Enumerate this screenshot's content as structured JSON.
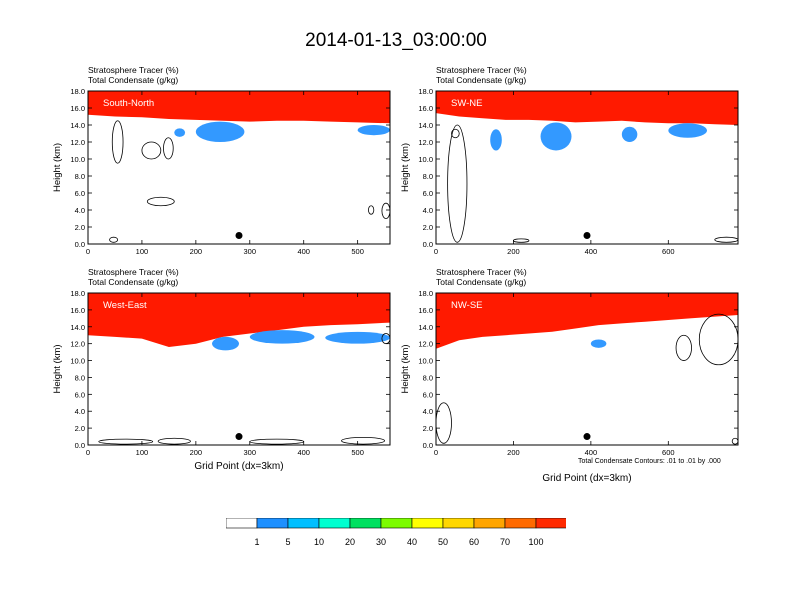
{
  "figure": {
    "title": "2014-01-13_03:00:00",
    "x_axis_title": "Grid Point (dx=3km)",
    "y_axis_title": "Height (km)",
    "contour_note": "Total Condensate Contours: .01 to .01 by .000",
    "labels": {
      "tracer": "Stratosphere Tracer",
      "tracer_unit": "(%)",
      "condensate": "Total Condensate",
      "condensate_unit": "(g/kg)"
    }
  },
  "chart_data": [
    {
      "type": "heatmap",
      "name": "South-North",
      "xlim": [
        0,
        560
      ],
      "ylim": [
        0,
        18
      ],
      "xticks": [
        0,
        100,
        200,
        300,
        400,
        500
      ],
      "yticks": [
        "0.0",
        "2.0",
        "4.0",
        "6.0",
        "8.0",
        "10.0",
        "12.0",
        "14.0",
        "16.0",
        "18.0"
      ],
      "show_xaxis_title": false,
      "marker": {
        "x": 280,
        "y": 1.0
      },
      "profile_x": [
        0,
        50,
        100,
        150,
        200,
        250,
        300,
        350,
        400,
        450,
        500,
        560
      ],
      "tracer_base_km": [
        15.2,
        15.0,
        14.9,
        14.7,
        14.6,
        14.5,
        14.4,
        14.5,
        14.5,
        14.4,
        14.3,
        14.2
      ],
      "cloud_patches": [
        {
          "x_start": 200,
          "x_end": 290,
          "y_bottom": 12.0,
          "y_top": 14.4
        },
        {
          "x_start": 160,
          "x_end": 180,
          "y_bottom": 12.6,
          "y_top": 13.6
        },
        {
          "x_start": 500,
          "x_end": 560,
          "y_bottom": 12.8,
          "y_top": 14.0
        }
      ],
      "condensate_contours": [
        {
          "x_start": 45,
          "x_end": 65,
          "y_bottom": 9.5,
          "y_top": 14.5
        },
        {
          "x_start": 100,
          "x_end": 135,
          "y_bottom": 10.0,
          "y_top": 12.0
        },
        {
          "x_start": 140,
          "x_end": 158,
          "y_bottom": 10.0,
          "y_top": 12.5
        },
        {
          "x_start": 110,
          "x_end": 160,
          "y_bottom": 4.5,
          "y_top": 5.5
        },
        {
          "x_start": 520,
          "x_end": 530,
          "y_bottom": 3.5,
          "y_top": 4.5
        },
        {
          "x_start": 545,
          "x_end": 560,
          "y_bottom": 3.0,
          "y_top": 4.8
        },
        {
          "x_start": 40,
          "x_end": 55,
          "y_bottom": 0.2,
          "y_top": 0.8
        }
      ]
    },
    {
      "type": "heatmap",
      "name": "SW-NE",
      "xlim": [
        0,
        780
      ],
      "ylim": [
        0,
        18
      ],
      "xticks": [
        0,
        200,
        400,
        600
      ],
      "yticks": [
        "0.0",
        "2.0",
        "4.0",
        "6.0",
        "8.0",
        "10.0",
        "12.0",
        "14.0",
        "16.0",
        "18.0"
      ],
      "show_xaxis_title": false,
      "marker": {
        "x": 390,
        "y": 1.0
      },
      "profile_x": [
        0,
        60,
        120,
        180,
        240,
        300,
        360,
        420,
        480,
        540,
        600,
        660,
        720,
        780
      ],
      "tracer_base_km": [
        15.4,
        15.0,
        14.8,
        14.6,
        14.6,
        14.5,
        14.3,
        14.4,
        14.5,
        14.3,
        14.2,
        14.2,
        14.1,
        14.0
      ],
      "cloud_patches": [
        {
          "x_start": 140,
          "x_end": 170,
          "y_bottom": 11.0,
          "y_top": 13.5
        },
        {
          "x_start": 270,
          "x_end": 350,
          "y_bottom": 11.0,
          "y_top": 14.3
        },
        {
          "x_start": 480,
          "x_end": 520,
          "y_bottom": 12.0,
          "y_top": 13.8
        },
        {
          "x_start": 600,
          "x_end": 700,
          "y_bottom": 12.5,
          "y_top": 14.2
        }
      ],
      "condensate_contours": [
        {
          "x_start": 30,
          "x_end": 80,
          "y_bottom": 0.2,
          "y_top": 14.0
        },
        {
          "x_start": 40,
          "x_end": 60,
          "y_bottom": 12.5,
          "y_top": 13.5
        },
        {
          "x_start": 200,
          "x_end": 240,
          "y_bottom": 0.2,
          "y_top": 0.6
        },
        {
          "x_start": 720,
          "x_end": 780,
          "y_bottom": 0.2,
          "y_top": 0.8
        }
      ]
    },
    {
      "type": "heatmap",
      "name": "West-East",
      "xlim": [
        0,
        560
      ],
      "ylim": [
        0,
        18
      ],
      "xticks": [
        0,
        100,
        200,
        300,
        400,
        500
      ],
      "yticks": [
        "0.0",
        "2.0",
        "4.0",
        "6.0",
        "8.0",
        "10.0",
        "12.0",
        "14.0",
        "16.0",
        "18.0"
      ],
      "show_xaxis_title": true,
      "marker": {
        "x": 280,
        "y": 1.0
      },
      "profile_x": [
        0,
        50,
        100,
        150,
        200,
        250,
        300,
        350,
        400,
        450,
        500,
        560
      ],
      "tracer_base_km": [
        13.0,
        12.8,
        12.6,
        11.6,
        12.0,
        12.8,
        13.2,
        13.6,
        14.0,
        14.2,
        14.3,
        14.5
      ],
      "cloud_patches": [
        {
          "x_start": 230,
          "x_end": 280,
          "y_bottom": 11.2,
          "y_top": 12.8
        },
        {
          "x_start": 300,
          "x_end": 420,
          "y_bottom": 12.0,
          "y_top": 13.6
        },
        {
          "x_start": 440,
          "x_end": 560,
          "y_bottom": 12.0,
          "y_top": 13.4
        }
      ],
      "condensate_contours": [
        {
          "x_start": 20,
          "x_end": 120,
          "y_bottom": 0.1,
          "y_top": 0.7
        },
        {
          "x_start": 130,
          "x_end": 190,
          "y_bottom": 0.1,
          "y_top": 0.8
        },
        {
          "x_start": 300,
          "x_end": 400,
          "y_bottom": 0.1,
          "y_top": 0.7
        },
        {
          "x_start": 470,
          "x_end": 550,
          "y_bottom": 0.1,
          "y_top": 0.9
        },
        {
          "x_start": 545,
          "x_end": 560,
          "y_bottom": 12.0,
          "y_top": 13.2
        }
      ]
    },
    {
      "type": "heatmap",
      "name": "NW-SE",
      "xlim": [
        0,
        780
      ],
      "ylim": [
        0,
        18
      ],
      "xticks": [
        0,
        200,
        400,
        600
      ],
      "yticks": [
        "0.0",
        "2.0",
        "4.0",
        "6.0",
        "8.0",
        "10.0",
        "12.0",
        "14.0",
        "16.0",
        "18.0"
      ],
      "show_xaxis_title": true,
      "marker": {
        "x": 390,
        "y": 1.0
      },
      "profile_x": [
        0,
        60,
        120,
        180,
        240,
        300,
        360,
        420,
        480,
        540,
        600,
        660,
        720,
        780
      ],
      "tracer_base_km": [
        11.4,
        12.4,
        12.8,
        13.0,
        13.2,
        13.4,
        13.8,
        14.2,
        14.4,
        14.6,
        14.8,
        15.0,
        15.2,
        15.4
      ],
      "cloud_patches": [
        {
          "x_start": 400,
          "x_end": 440,
          "y_bottom": 11.5,
          "y_top": 12.5
        }
      ],
      "condensate_contours": [
        {
          "x_start": 0,
          "x_end": 40,
          "y_bottom": 0.2,
          "y_top": 5.0
        },
        {
          "x_start": 620,
          "x_end": 660,
          "y_bottom": 10.0,
          "y_top": 13.0
        },
        {
          "x_start": 680,
          "x_end": 780,
          "y_bottom": 9.5,
          "y_top": 15.5
        },
        {
          "x_start": 765,
          "x_end": 780,
          "y_bottom": 0.1,
          "y_top": 0.8
        }
      ]
    }
  ],
  "colorbar": {
    "levels": [
      "1",
      "5",
      "10",
      "20",
      "30",
      "40",
      "50",
      "60",
      "70",
      "100"
    ],
    "colors": [
      "#ffffff",
      "#1e90ff",
      "#00bfff",
      "#00ffd0",
      "#00e060",
      "#7cfc00",
      "#ffff00",
      "#ffd700",
      "#ffa500",
      "#ff6a00",
      "#ff2a00"
    ]
  }
}
